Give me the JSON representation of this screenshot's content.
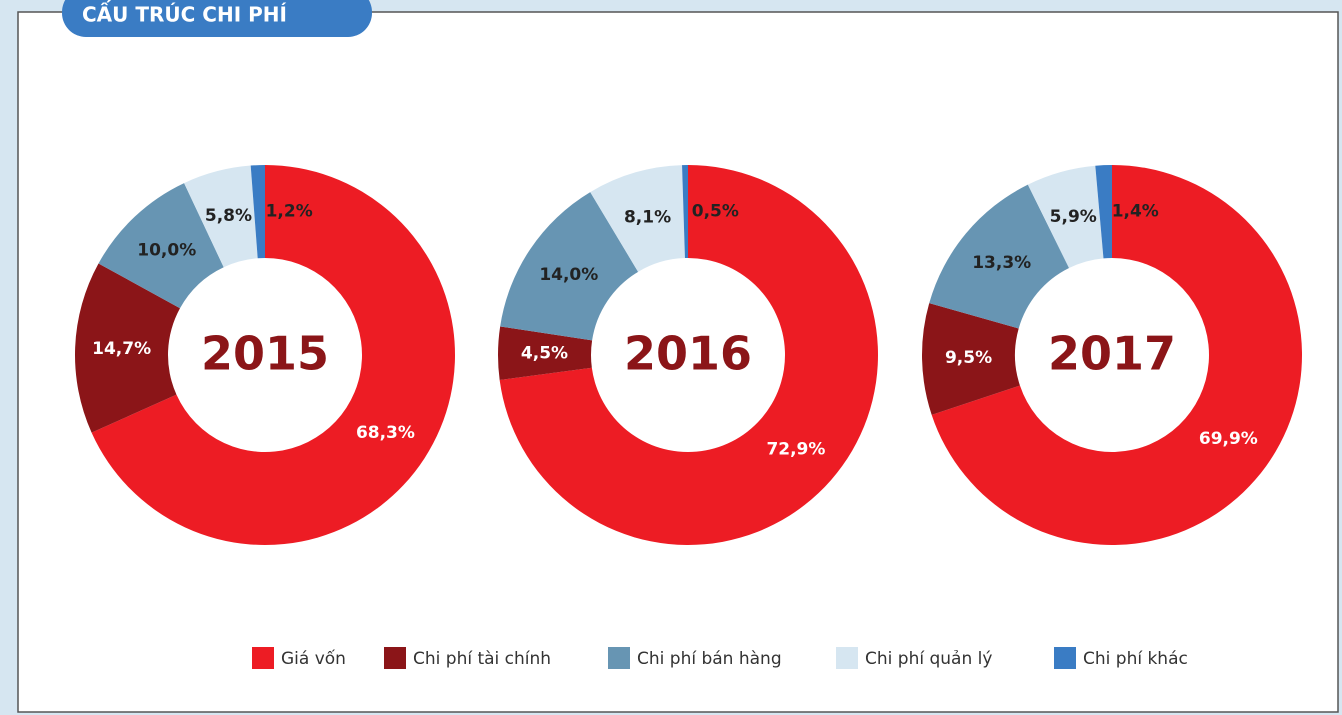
{
  "title": "CẤU TRÚC CHI PHÍ",
  "categories": [
    "Giá vốn",
    "Chi phí tài chính",
    "Chi phí bán hàng",
    "Chi phí quản lý",
    "Chi phí khác"
  ],
  "colors": [
    "#ed1c24",
    "#8b1518",
    "#6795b3",
    "#d6e6f1",
    "#3a7cc4"
  ],
  "chart_data": [
    {
      "type": "pie",
      "center_label": "2015",
      "values": [
        68.3,
        14.7,
        10.0,
        5.8,
        1.2
      ],
      "value_labels": [
        "68,3%",
        "14,7%",
        "10,0%",
        "5,8%",
        "1,2%"
      ]
    },
    {
      "type": "pie",
      "center_label": "2016",
      "values": [
        72.9,
        4.5,
        14.0,
        8.1,
        0.5
      ],
      "value_labels": [
        "72,9%",
        "4,5%",
        "14,0%",
        "8,1%",
        "0,5%"
      ]
    },
    {
      "type": "pie",
      "center_label": "2017",
      "values": [
        69.9,
        9.5,
        13.3,
        5.9,
        1.4
      ],
      "value_labels": [
        "69,9%",
        "9,5%",
        "13,3%",
        "5,9%",
        "1,4%"
      ]
    }
  ]
}
